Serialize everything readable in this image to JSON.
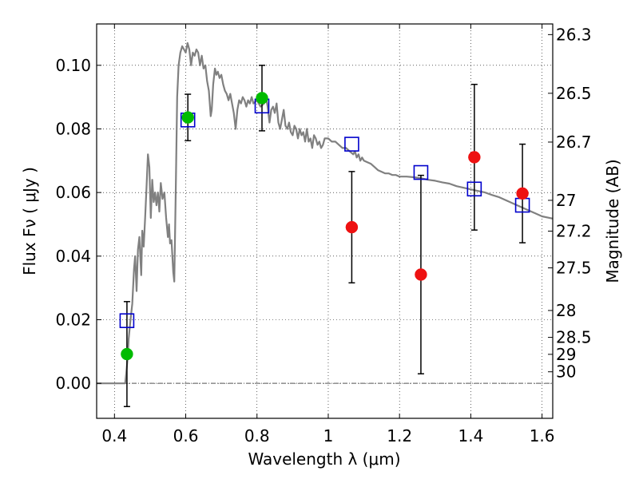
{
  "chart_data": {
    "type": "scatter",
    "title": "",
    "xlabel": "Wavelength  λ (μm)",
    "ylabel": "Flux  Fν ( μJy )",
    "y2label": "Magnitude (AB)",
    "xlim": [
      0.35,
      1.63
    ],
    "ylim": [
      -0.011,
      0.113
    ],
    "grid": true,
    "legend": "none",
    "x_ticks": [
      {
        "value": 0.4,
        "label": "0.4"
      },
      {
        "value": 0.6,
        "label": "0.6"
      },
      {
        "value": 0.8,
        "label": "0.8"
      },
      {
        "value": 1.0,
        "label": "1"
      },
      {
        "value": 1.2,
        "label": "1.2"
      },
      {
        "value": 1.4,
        "label": "1.4"
      },
      {
        "value": 1.6,
        "label": "1.6"
      }
    ],
    "y_ticks": [
      {
        "value": 0.0,
        "label": "0.00"
      },
      {
        "value": 0.02,
        "label": "0.02"
      },
      {
        "value": 0.04,
        "label": "0.04"
      },
      {
        "value": 0.06,
        "label": "0.06"
      },
      {
        "value": 0.08,
        "label": "0.08"
      },
      {
        "value": 0.1,
        "label": "0.10"
      }
    ],
    "y2_ticks": [
      {
        "mag": 26.3,
        "label": "26.3"
      },
      {
        "mag": 26.5,
        "label": "26.5"
      },
      {
        "mag": 26.7,
        "label": "26.7"
      },
      {
        "mag": 27.0,
        "label": "27"
      },
      {
        "mag": 27.2,
        "label": "27.2"
      },
      {
        "mag": 27.5,
        "label": "27.5"
      },
      {
        "mag": 28.0,
        "label": "28"
      },
      {
        "mag": 28.5,
        "label": "28.5"
      },
      {
        "mag": 29.0,
        "label": "29"
      },
      {
        "mag": 30.0,
        "label": "30"
      }
    ],
    "colors": {
      "model": "#808080",
      "model_points": "#0000cc",
      "detections": "#00bb00",
      "nondetections": "#ee1111",
      "errorbars": "#000000",
      "zero_line": "#555555"
    },
    "model_spectrum": [
      [
        0.35,
        0.0
      ],
      [
        0.43,
        0.0
      ],
      [
        0.433,
        0.003
      ],
      [
        0.437,
        0.008
      ],
      [
        0.44,
        0.014
      ],
      [
        0.445,
        0.02
      ],
      [
        0.45,
        0.025
      ],
      [
        0.455,
        0.036
      ],
      [
        0.458,
        0.04
      ],
      [
        0.462,
        0.029
      ],
      [
        0.466,
        0.042
      ],
      [
        0.47,
        0.046
      ],
      [
        0.475,
        0.034
      ],
      [
        0.478,
        0.048
      ],
      [
        0.482,
        0.043
      ],
      [
        0.486,
        0.052
      ],
      [
        0.49,
        0.062
      ],
      [
        0.494,
        0.072
      ],
      [
        0.498,
        0.068
      ],
      [
        0.502,
        0.052
      ],
      [
        0.506,
        0.064
      ],
      [
        0.51,
        0.057
      ],
      [
        0.514,
        0.06
      ],
      [
        0.518,
        0.056
      ],
      [
        0.522,
        0.06
      ],
      [
        0.526,
        0.054
      ],
      [
        0.53,
        0.063
      ],
      [
        0.535,
        0.058
      ],
      [
        0.54,
        0.06
      ],
      [
        0.545,
        0.052
      ],
      [
        0.55,
        0.046
      ],
      [
        0.553,
        0.05
      ],
      [
        0.556,
        0.044
      ],
      [
        0.56,
        0.045
      ],
      [
        0.565,
        0.035
      ],
      [
        0.568,
        0.032
      ],
      [
        0.572,
        0.06
      ],
      [
        0.576,
        0.09
      ],
      [
        0.58,
        0.1
      ],
      [
        0.585,
        0.104
      ],
      [
        0.59,
        0.106
      ],
      [
        0.595,
        0.105
      ],
      [
        0.6,
        0.104
      ],
      [
        0.605,
        0.107
      ],
      [
        0.61,
        0.105
      ],
      [
        0.615,
        0.1
      ],
      [
        0.62,
        0.104
      ],
      [
        0.625,
        0.103
      ],
      [
        0.63,
        0.105
      ],
      [
        0.635,
        0.104
      ],
      [
        0.64,
        0.1
      ],
      [
        0.645,
        0.103
      ],
      [
        0.65,
        0.099
      ],
      [
        0.655,
        0.1
      ],
      [
        0.66,
        0.095
      ],
      [
        0.665,
        0.092
      ],
      [
        0.67,
        0.084
      ],
      [
        0.673,
        0.086
      ],
      [
        0.677,
        0.094
      ],
      [
        0.682,
        0.099
      ],
      [
        0.686,
        0.097
      ],
      [
        0.69,
        0.098
      ],
      [
        0.695,
        0.096
      ],
      [
        0.7,
        0.097
      ],
      [
        0.705,
        0.094
      ],
      [
        0.71,
        0.092
      ],
      [
        0.715,
        0.091
      ],
      [
        0.72,
        0.089
      ],
      [
        0.725,
        0.091
      ],
      [
        0.73,
        0.088
      ],
      [
        0.735,
        0.085
      ],
      [
        0.74,
        0.08
      ],
      [
        0.745,
        0.086
      ],
      [
        0.75,
        0.089
      ],
      [
        0.755,
        0.088
      ],
      [
        0.76,
        0.09
      ],
      [
        0.765,
        0.089
      ],
      [
        0.77,
        0.087
      ],
      [
        0.775,
        0.089
      ],
      [
        0.78,
        0.088
      ],
      [
        0.785,
        0.09
      ],
      [
        0.79,
        0.088
      ],
      [
        0.8,
        0.089
      ],
      [
        0.81,
        0.087
      ],
      [
        0.82,
        0.088
      ],
      [
        0.825,
        0.09
      ],
      [
        0.83,
        0.087
      ],
      [
        0.835,
        0.082
      ],
      [
        0.84,
        0.086
      ],
      [
        0.845,
        0.087
      ],
      [
        0.85,
        0.085
      ],
      [
        0.855,
        0.088
      ],
      [
        0.86,
        0.082
      ],
      [
        0.865,
        0.08
      ],
      [
        0.87,
        0.083
      ],
      [
        0.875,
        0.086
      ],
      [
        0.88,
        0.081
      ],
      [
        0.885,
        0.08
      ],
      [
        0.89,
        0.082
      ],
      [
        0.895,
        0.079
      ],
      [
        0.9,
        0.078
      ],
      [
        0.905,
        0.081
      ],
      [
        0.91,
        0.08
      ],
      [
        0.915,
        0.077
      ],
      [
        0.92,
        0.08
      ],
      [
        0.925,
        0.078
      ],
      [
        0.93,
        0.079
      ],
      [
        0.935,
        0.076
      ],
      [
        0.94,
        0.08
      ],
      [
        0.945,
        0.076
      ],
      [
        0.95,
        0.077
      ],
      [
        0.955,
        0.074
      ],
      [
        0.96,
        0.078
      ],
      [
        0.965,
        0.077
      ],
      [
        0.97,
        0.075
      ],
      [
        0.975,
        0.076
      ],
      [
        0.98,
        0.074
      ],
      [
        0.985,
        0.075
      ],
      [
        0.99,
        0.077
      ],
      [
        1.0,
        0.077
      ],
      [
        1.01,
        0.076
      ],
      [
        1.02,
        0.076
      ],
      [
        1.03,
        0.075
      ],
      [
        1.04,
        0.074
      ],
      [
        1.05,
        0.074
      ],
      [
        1.06,
        0.073
      ],
      [
        1.07,
        0.072
      ],
      [
        1.075,
        0.073
      ],
      [
        1.08,
        0.071
      ],
      [
        1.085,
        0.072
      ],
      [
        1.09,
        0.07
      ],
      [
        1.095,
        0.071
      ],
      [
        1.1,
        0.07
      ],
      [
        1.11,
        0.0695
      ],
      [
        1.12,
        0.069
      ],
      [
        1.13,
        0.068
      ],
      [
        1.14,
        0.067
      ],
      [
        1.15,
        0.0665
      ],
      [
        1.16,
        0.066
      ],
      [
        1.17,
        0.066
      ],
      [
        1.18,
        0.0655
      ],
      [
        1.19,
        0.0655
      ],
      [
        1.2,
        0.065
      ],
      [
        1.22,
        0.065
      ],
      [
        1.24,
        0.0648
      ],
      [
        1.26,
        0.0645
      ],
      [
        1.28,
        0.064
      ],
      [
        1.3,
        0.0637
      ],
      [
        1.32,
        0.0632
      ],
      [
        1.34,
        0.0628
      ],
      [
        1.36,
        0.062
      ],
      [
        1.38,
        0.0615
      ],
      [
        1.4,
        0.061
      ],
      [
        1.42,
        0.0605
      ],
      [
        1.44,
        0.06
      ],
      [
        1.46,
        0.0592
      ],
      [
        1.48,
        0.0585
      ],
      [
        1.5,
        0.0575
      ],
      [
        1.52,
        0.0565
      ],
      [
        1.54,
        0.0555
      ],
      [
        1.56,
        0.0545
      ],
      [
        1.58,
        0.0535
      ],
      [
        1.6,
        0.0525
      ],
      [
        1.63,
        0.0518
      ]
    ],
    "model_band_fluxes": [
      {
        "x": 0.435,
        "y": 0.0197
      },
      {
        "x": 0.606,
        "y": 0.0828
      },
      {
        "x": 0.814,
        "y": 0.0872
      },
      {
        "x": 1.066,
        "y": 0.0752
      },
      {
        "x": 1.26,
        "y": 0.0663
      },
      {
        "x": 1.41,
        "y": 0.0611
      },
      {
        "x": 1.545,
        "y": 0.056
      }
    ],
    "detections": [
      {
        "x": 0.435,
        "y": 0.0092,
        "yerr_low": 0.0165,
        "yerr_high": 0.0165
      },
      {
        "x": 0.606,
        "y": 0.0836,
        "yerr_low": 0.0073,
        "yerr_high": 0.0073
      },
      {
        "x": 0.814,
        "y": 0.0897,
        "yerr_low": 0.0103,
        "yerr_high": 0.0103
      }
    ],
    "nondetections": [
      {
        "x": 1.066,
        "y": 0.0491,
        "yerr_low": 0.0175,
        "yerr_high": 0.0175
      },
      {
        "x": 1.26,
        "y": 0.0342,
        "yerr_low": 0.0312,
        "yerr_high": 0.0312
      },
      {
        "x": 1.41,
        "y": 0.0711,
        "yerr_low": 0.0229,
        "yerr_high": 0.0229
      },
      {
        "x": 1.545,
        "y": 0.0597,
        "yerr_low": 0.0155,
        "yerr_high": 0.0155
      }
    ]
  }
}
